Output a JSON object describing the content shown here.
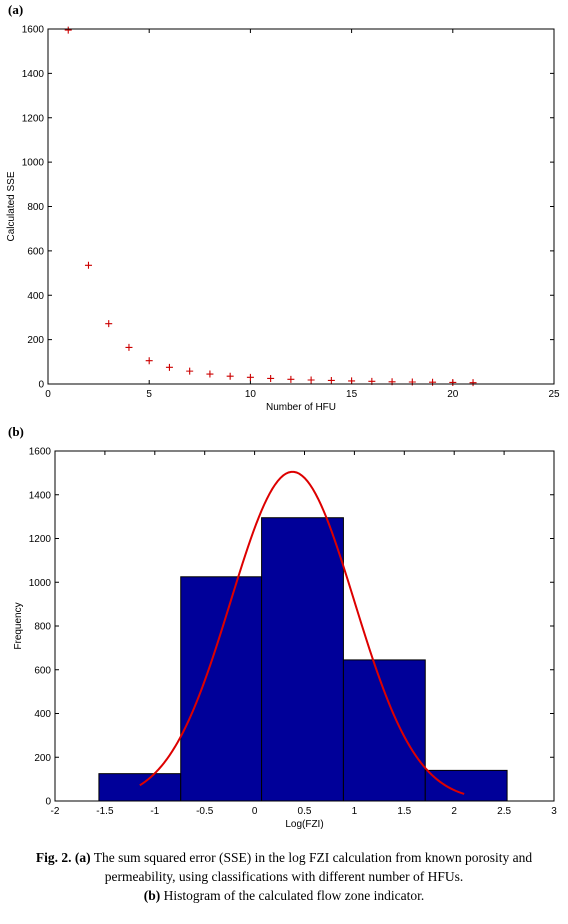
{
  "panels": {
    "a": "(a)",
    "b": "(b)"
  },
  "caption": {
    "fig_label": "Fig. 2.",
    "part_a_label": "(a)",
    "part_a_text": "The sum squared error (SSE) in the log FZI calculation from known porosity and permeability, using classifications with different number of HFUs.",
    "part_b_label": "(b)",
    "part_b_text": "Histogram of the calculated flow zone indicator."
  },
  "chart_data": [
    {
      "type": "scatter",
      "xlabel": "Number of HFU",
      "ylabel": "Calculated SSE",
      "xlim": [
        0,
        25
      ],
      "ylim": [
        0,
        1600
      ],
      "xticks": [
        0,
        5,
        10,
        15,
        20,
        25
      ],
      "yticks": [
        0,
        200,
        400,
        600,
        800,
        1000,
        1200,
        1400,
        1600
      ],
      "marker": "+",
      "marker_color": "#cc0000",
      "x": [
        1,
        2,
        3,
        4,
        5,
        6,
        7,
        8,
        9,
        10,
        11,
        12,
        13,
        14,
        15,
        16,
        17,
        18,
        19,
        20,
        21
      ],
      "y": [
        1595,
        535,
        272,
        165,
        105,
        75,
        58,
        45,
        35,
        30,
        25,
        21,
        18,
        16,
        14,
        12,
        10,
        9,
        8,
        7,
        6
      ]
    },
    {
      "type": "bar",
      "subtype": "histogram",
      "xlabel": "Log(FZI)",
      "ylabel": "Frequency",
      "xlim": [
        -2,
        3
      ],
      "ylim": [
        0,
        1600
      ],
      "xticks": [
        -2,
        -1.5,
        -1,
        -0.5,
        0,
        0.5,
        1,
        1.5,
        2,
        2.5,
        3
      ],
      "yticks": [
        0,
        200,
        400,
        600,
        800,
        1000,
        1200,
        1400,
        1600
      ],
      "bar_color": "#000099",
      "bins": [
        {
          "x0": -1.56,
          "x1": -0.74,
          "value": 125
        },
        {
          "x0": -0.74,
          "x1": 0.07,
          "value": 1025
        },
        {
          "x0": 0.07,
          "x1": 0.89,
          "value": 1295
        },
        {
          "x0": 0.89,
          "x1": 1.71,
          "value": 645
        },
        {
          "x0": 1.71,
          "x1": 2.53,
          "value": 140
        }
      ],
      "fit_curve": {
        "color": "#dd0000",
        "type": "normal",
        "mean": 0.38,
        "sd": 0.62,
        "peak": 1505,
        "x_start": -1.15,
        "x_end": 2.1
      }
    }
  ]
}
